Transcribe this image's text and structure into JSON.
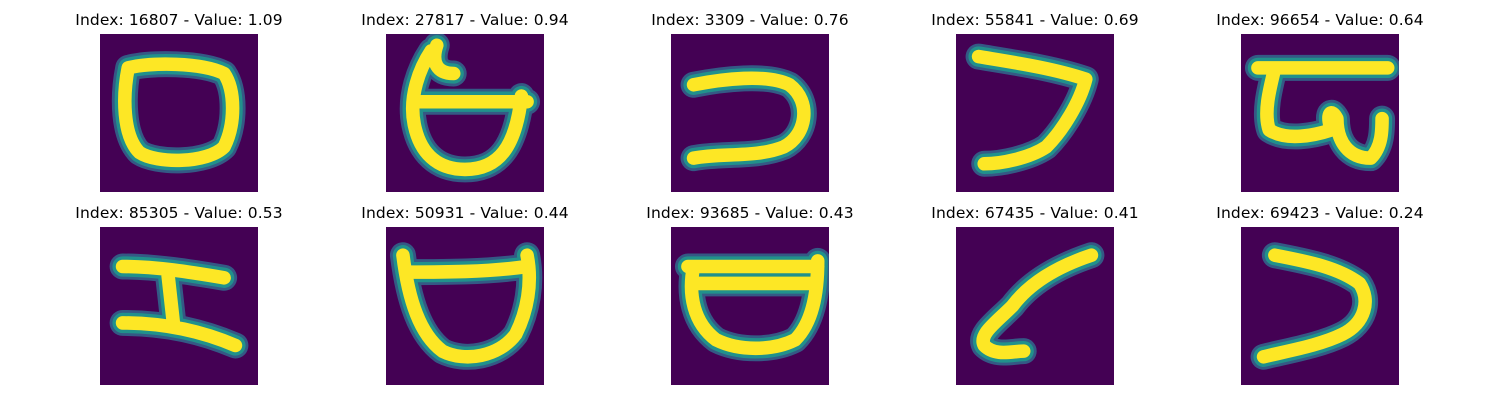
{
  "colors": {
    "background": "#440154",
    "stroke_core": "#fde725",
    "stroke_mid": "#b5de2b",
    "stroke_edge": "#21918c",
    "stroke_halo": "#31688e"
  },
  "panels": [
    {
      "title": "Index: 16807 - Value: 1.09",
      "glyph": "oval"
    },
    {
      "title": "Index: 27817 - Value: 0.94",
      "glyph": "bowl-with-bar"
    },
    {
      "title": "Index: 3309 - Value: 0.76",
      "glyph": "reverse-c"
    },
    {
      "title": "Index: 55841 - Value: 0.69",
      "glyph": "angle"
    },
    {
      "title": "Index: 96654 - Value: 0.64",
      "glyph": "complex-loop"
    },
    {
      "title": "Index: 85305 - Value: 0.53",
      "glyph": "h-shape"
    },
    {
      "title": "Index: 50931 - Value: 0.44",
      "glyph": "open-bowl"
    },
    {
      "title": "Index: 93685 - Value: 0.43",
      "glyph": "bowl"
    },
    {
      "title": "Index: 67435 - Value: 0.41",
      "glyph": "hook"
    },
    {
      "title": "Index: 69423 - Value: 0.24",
      "glyph": "reverse-c-2"
    }
  ]
}
